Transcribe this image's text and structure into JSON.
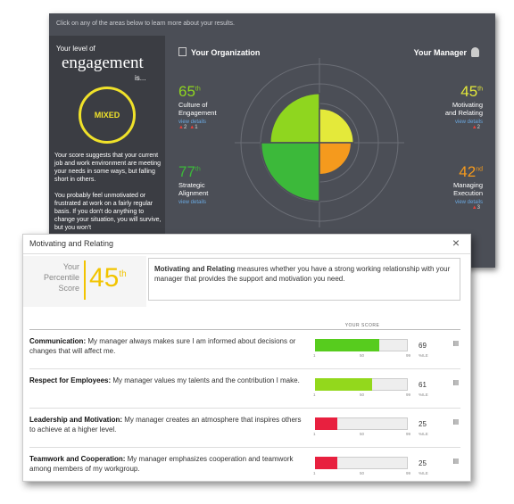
{
  "header": {
    "instruction": "Click on any of the areas below to learn more about your results."
  },
  "sidebar": {
    "intro": "Your level of",
    "headline": "engagement",
    "ellipsis": "is...",
    "badge": "MIXED",
    "paragraphs": [
      "Your score suggests that your current job and work environment are meeting your needs in some ways, but falling short in others.",
      "You probably feel unmotivated or frustrated at work on a fairly regular basis. If you don't do anything to change your situation, you will survive, but you won't"
    ]
  },
  "organization": {
    "title": "Your Organization"
  },
  "manager": {
    "title": "Your Manager"
  },
  "quadrants": [
    {
      "score": 65,
      "suffix": "th",
      "label": [
        "Culture of",
        "Engagement"
      ],
      "link": "view details",
      "alerts": [
        2,
        1
      ],
      "color": "#8fd61f"
    },
    {
      "score": 45,
      "suffix": "th",
      "label": [
        "Motivating",
        "and Relating"
      ],
      "link": "view details",
      "alerts": [
        2
      ],
      "color": "#e4e93a"
    },
    {
      "score": 77,
      "suffix": "th",
      "label": [
        "Strategic",
        "Alignment"
      ],
      "link": "view details",
      "alerts": [],
      "color": "#3cb93a"
    },
    {
      "score": 42,
      "suffix": "nd",
      "label": [
        "Managing",
        "Execution"
      ],
      "link": "view details",
      "alerts": [
        3
      ],
      "color": "#f59a1d"
    }
  ],
  "modal": {
    "title": "Motivating and Relating",
    "close": "×",
    "percentile": {
      "label": [
        "Your",
        "Percentile",
        "Score"
      ],
      "score": 45,
      "suffix": "th"
    },
    "description": {
      "term": "Motivating and Relating",
      "text": " measures whether you have a strong working relationship with your manager that provides the support and motivation you need."
    },
    "column_header": "YOUR SCORE",
    "scale": [
      1,
      50,
      99
    ],
    "unit": "%ILE",
    "rows": [
      {
        "term": "Communication:",
        "text": " My manager always makes sure I am informed about decisions or changes that will affect me.",
        "score": 69,
        "color": "#57cc1e"
      },
      {
        "term": "Respect for Employees:",
        "text": " My manager values my talents and the contribution I make.",
        "score": 61,
        "color": "#93d81c"
      },
      {
        "term": "Leadership and Motivation:",
        "text": " My manager creates an atmosphere that inspires others to achieve at a higher level.",
        "score": 25,
        "color": "#e8203f"
      },
      {
        "term": "Teamwork and Cooperation:",
        "text": " My manager emphasizes cooperation and teamwork among members of my workgroup.",
        "score": 25,
        "color": "#e8203f"
      }
    ]
  }
}
